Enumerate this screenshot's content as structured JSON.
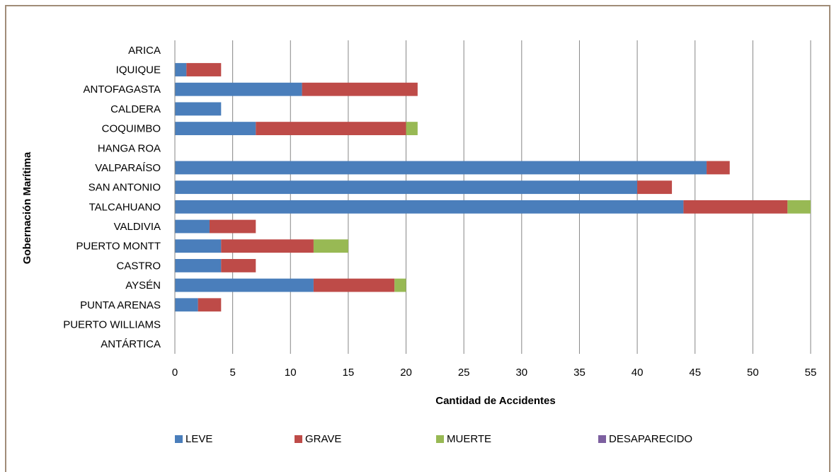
{
  "chart_data": {
    "type": "bar",
    "orientation": "horizontal",
    "stacked": true,
    "title": "",
    "xlabel": "Cantidad de Accidentes",
    "ylabel": "Gobernación Marítima",
    "xlim": [
      0,
      55
    ],
    "xticks": [
      0,
      5,
      10,
      15,
      20,
      25,
      30,
      35,
      40,
      45,
      50,
      55
    ],
    "grid": "vertical",
    "legend_position": "bottom",
    "categories": [
      "ARICA",
      "IQUIQUE",
      "ANTOFAGASTA",
      "CALDERA",
      "COQUIMBO",
      "HANGA ROA",
      "VALPARAÍSO",
      "SAN ANTONIO",
      "TALCAHUANO",
      "VALDIVIA",
      "PUERTO MONTT",
      "CASTRO",
      "AYSÉN",
      "PUNTA ARENAS",
      "PUERTO WILLIAMS",
      "ANTÁRTICA"
    ],
    "series": [
      {
        "name": "LEVE",
        "color": "#4a7ebb",
        "values": [
          0,
          1,
          11,
          4,
          7,
          0,
          46,
          40,
          44,
          3,
          4,
          4,
          12,
          2,
          0,
          0
        ]
      },
      {
        "name": "GRAVE",
        "color": "#be4b48",
        "values": [
          0,
          3,
          10,
          0,
          13,
          0,
          2,
          3,
          9,
          4,
          8,
          3,
          7,
          2,
          0,
          0
        ]
      },
      {
        "name": "MUERTE",
        "color": "#98b954",
        "values": [
          0,
          0,
          0,
          0,
          1,
          0,
          0,
          0,
          2,
          0,
          3,
          0,
          1,
          0,
          0,
          0
        ]
      },
      {
        "name": "DESAPARECIDO",
        "color": "#7d60a0",
        "values": [
          0,
          0,
          0,
          0,
          0,
          0,
          0,
          0,
          0,
          0,
          0,
          0,
          0,
          0,
          0,
          0
        ]
      }
    ]
  }
}
